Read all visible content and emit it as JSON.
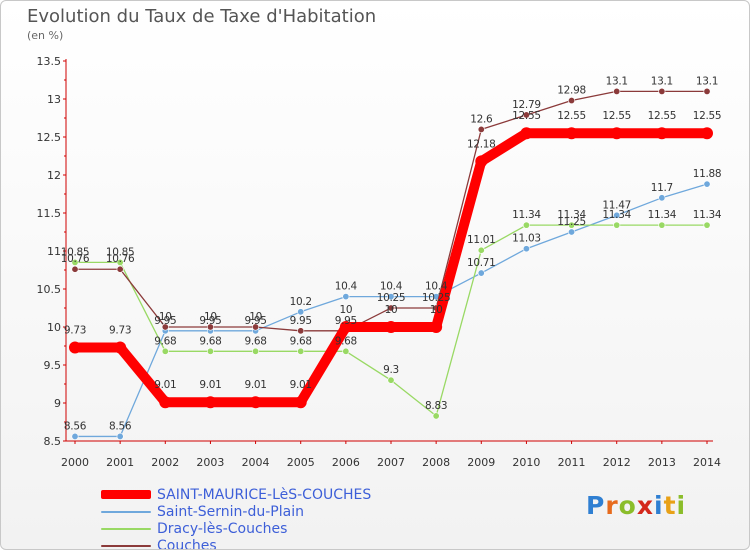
{
  "chart_data": {
    "type": "line",
    "title": "Evolution du Taux de Taxe d'Habitation",
    "unit_label": "(en %)",
    "x": [
      "2000",
      "2001",
      "2002",
      "2003",
      "2004",
      "2005",
      "2006",
      "2007",
      "2008",
      "2009",
      "2010",
      "2011",
      "2012",
      "2013",
      "2014"
    ],
    "ylim": [
      8.5,
      13.5
    ],
    "yticks": [
      "8.5",
      "9",
      "9.5",
      "10",
      "10.5",
      "11",
      "11.5",
      "12",
      "12.5",
      "13",
      "13.5"
    ],
    "grid": false,
    "legend_position": "bottom-left",
    "series": [
      {
        "name": "SAINT-MAURICE-LèS-COUCHES",
        "color": "#ff0000",
        "values": [
          9.73,
          9.73,
          9.01,
          9.01,
          9.01,
          9.01,
          10,
          10,
          10,
          12.18,
          12.55,
          12.55,
          12.55,
          12.55,
          12.55
        ],
        "labels": [
          "9.73",
          "9.73",
          "9.01",
          "9.01",
          "9.01",
          "9.01",
          "10",
          "10",
          "10",
          "12.18",
          "12.55",
          "12.55",
          "12.55",
          "12.55",
          "12.55"
        ]
      },
      {
        "name": "Saint-Sernin-du-Plain",
        "color": "#6fa8dc",
        "values": [
          8.56,
          8.56,
          9.95,
          9.95,
          9.95,
          10.2,
          10.4,
          10.4,
          10.4,
          10.71,
          11.03,
          11.25,
          11.47,
          11.7,
          11.88
        ],
        "labels": [
          "8.56",
          "8.56",
          "9.95",
          "9.95",
          "9.95",
          "10.2",
          "10.4",
          "10.4",
          "10.4",
          "10.71",
          "11.03",
          "11.25",
          "11.47",
          "11.7",
          "11.88"
        ]
      },
      {
        "name": "Dracy-lès-Couches",
        "color": "#99d964",
        "values": [
          10.85,
          10.85,
          9.68,
          9.68,
          9.68,
          9.68,
          9.68,
          9.3,
          8.83,
          11.01,
          11.34,
          11.34,
          11.34,
          11.34,
          11.34
        ],
        "labels": [
          "10.85",
          "10.85",
          "9.68",
          "9.68",
          "9.68",
          "9.68",
          "9.68",
          "9.3",
          "8.83",
          "11.01",
          "11.34",
          "11.34",
          "11.34",
          "11.34",
          "11.34"
        ]
      },
      {
        "name": "Couches",
        "color": "#8b3a3a",
        "values": [
          10.76,
          10.76,
          10,
          10,
          10,
          9.95,
          9.95,
          10.25,
          10.25,
          12.6,
          12.79,
          12.98,
          13.1,
          13.1,
          13.1
        ],
        "labels": [
          "10.76",
          "10.76",
          "10",
          "10",
          "10",
          "9.95",
          "9.95",
          "10.25",
          "10.25",
          "12.6",
          "12.79",
          "12.98",
          "13.1",
          "13.1",
          "13.1"
        ]
      }
    ]
  },
  "logo": {
    "letters": [
      "P",
      "r",
      "o",
      "x",
      "i",
      "t",
      "i"
    ]
  }
}
